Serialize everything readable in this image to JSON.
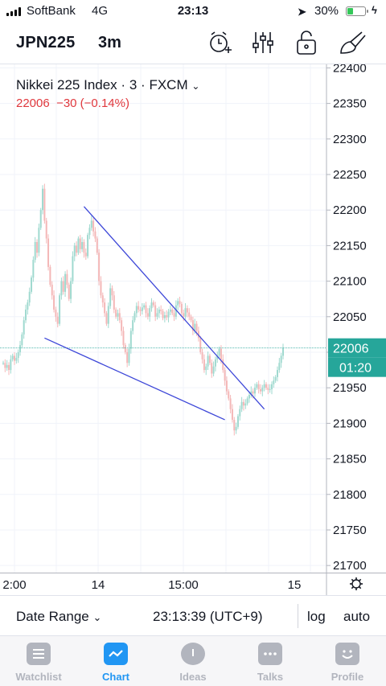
{
  "status_bar": {
    "carrier": "SoftBank",
    "network": "4G",
    "time": "23:13",
    "battery_percent": "30%",
    "battery_level": 0.3,
    "colors": {
      "battery": "#34c759"
    },
    "icons": [
      "signal-icon",
      "location-arrow-icon",
      "battery-icon",
      "charging-bolt-icon"
    ]
  },
  "header": {
    "symbol": "JPN225",
    "interval": "3m",
    "icons": [
      "alarm-add-icon",
      "indicator-settings-icon",
      "unlock-icon",
      "drawing-tools-icon"
    ]
  },
  "legend": {
    "title_name": "Nikkei 225 Index",
    "title_sep1": "·",
    "title_interval": "3",
    "title_sep2": "·",
    "title_exchange": "FXCM",
    "quote_last": "22006",
    "quote_change": "−30 (−0.14%)"
  },
  "time_axis_labels": [
    "2:00",
    "14",
    "15:00",
    "15"
  ],
  "bottom_bar": {
    "date_range": "Date Range",
    "server_time": "23:13:39 (UTC+9)",
    "log": "log",
    "auto": "auto"
  },
  "tabs": [
    {
      "label": "Watchlist",
      "icon": "list-icon",
      "active": false
    },
    {
      "label": "Chart",
      "icon": "chart-line-icon",
      "active": true
    },
    {
      "label": "Ideas",
      "icon": "lightbulb-icon",
      "active": false
    },
    {
      "label": "Talks",
      "icon": "chat-bubble-icon",
      "active": false
    },
    {
      "label": "Profile",
      "icon": "smiley-icon",
      "active": false
    }
  ],
  "chart_data": {
    "type": "line",
    "ylim": [
      21690,
      22405
    ],
    "y_ticks": [
      22400,
      22350,
      22300,
      22250,
      22200,
      22150,
      22100,
      22050,
      22000,
      21950,
      21900,
      21850,
      21800,
      21750,
      21700
    ],
    "grid": true,
    "x_labels": [
      "2:00",
      "14",
      "15:00",
      "15"
    ],
    "price_label": "22006",
    "countdown_label": "01:20",
    "last_price": 22006,
    "colors": {
      "up": "#9fd9cf",
      "down": "#f4b7b7",
      "line": "#3d47d8",
      "price": "#26a69a"
    },
    "series": [
      {
        "values": [
          21985,
          21978,
          21982,
          21975,
          21990,
          21995,
          21988,
          21992,
          22000,
          22010,
          22025,
          22045,
          22060,
          22070,
          22085,
          22105,
          22130,
          22155,
          22140,
          22175,
          22200,
          22230,
          22185,
          22160,
          22120,
          22095,
          22080,
          22060,
          22050,
          22040,
          22080,
          22100,
          22085,
          22110,
          22095,
          22075,
          22100,
          22135,
          22150,
          22140,
          22160,
          22145,
          22155,
          22140,
          22135,
          22165,
          22175,
          22185,
          22170,
          22160,
          22140,
          22100,
          22080,
          22070,
          22055,
          22040,
          22065,
          22090,
          22080,
          22060,
          22050,
          22055,
          22045,
          22030,
          22010,
          22000,
          21985,
          22005,
          22030,
          22045,
          22055,
          22065,
          22060,
          22058,
          22063,
          22066,
          22055,
          22050,
          22062,
          22070,
          22066,
          22050,
          22055,
          22060,
          22058,
          22048,
          22052,
          22049,
          22057,
          22060,
          22055,
          22050,
          22066,
          22072,
          22068,
          22055,
          22050,
          22062,
          22056,
          22050,
          22045,
          22030,
          22040,
          22030,
          22020,
          22000,
          21990,
          21975,
          21980,
          21995,
          21985,
          21970,
          21980,
          21990,
          21995,
          22005,
          21990,
          21975,
          21960,
          21945,
          21935,
          21920,
          21905,
          21890,
          21895,
          21910,
          21920,
          21930,
          21925,
          21928,
          21935,
          21940,
          21945,
          21942,
          21950,
          21955,
          21948,
          21945,
          21950,
          21955,
          21950,
          21947,
          21948,
          21955,
          21960,
          21965,
          21975,
          21985,
          21995,
          22006
        ]
      }
    ],
    "trendlines": [
      {
        "from": {
          "i": 43,
          "y": 22205
        },
        "to": {
          "i": 139,
          "y": 21920
        }
      },
      {
        "from": {
          "i": 22,
          "y": 22020
        },
        "to": {
          "i": 118,
          "y": 21905
        }
      }
    ]
  }
}
